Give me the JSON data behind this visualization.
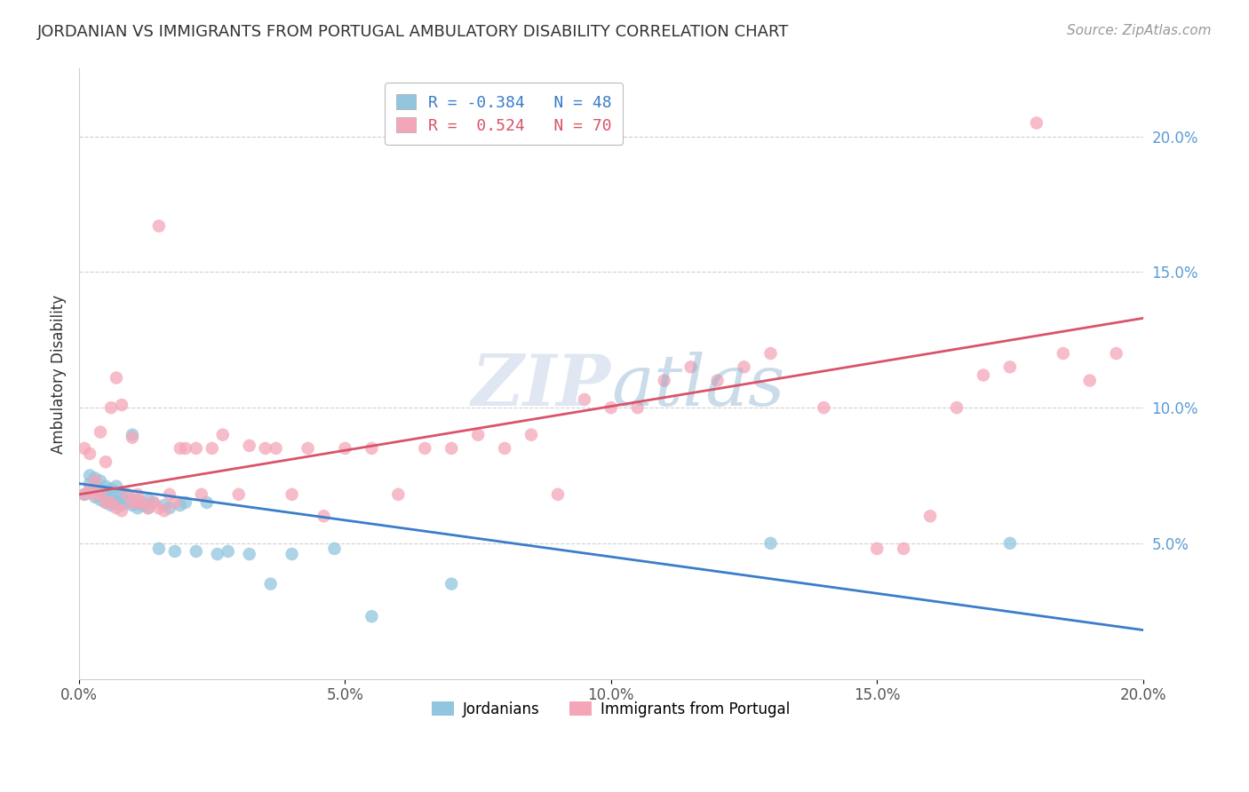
{
  "title": "JORDANIAN VS IMMIGRANTS FROM PORTUGAL AMBULATORY DISABILITY CORRELATION CHART",
  "source": "Source: ZipAtlas.com",
  "ylabel": "Ambulatory Disability",
  "xmin": 0.0,
  "xmax": 0.2,
  "ymin": 0.0,
  "ymax": 0.225,
  "blue_R": -0.384,
  "blue_N": 48,
  "pink_R": 0.524,
  "pink_N": 70,
  "blue_color": "#92c5de",
  "pink_color": "#f4a6b8",
  "blue_line_color": "#3a7dc9",
  "pink_line_color": "#d9536a",
  "legend_label_blue": "Jordanians",
  "legend_label_pink": "Immigrants from Portugal",
  "blue_legend_text_color": "#3a7dc9",
  "pink_legend_text_color": "#d9536a",
  "watermark": "ZIPAtlas",
  "blue_x": [
    0.001,
    0.002,
    0.002,
    0.003,
    0.003,
    0.003,
    0.004,
    0.004,
    0.004,
    0.005,
    0.005,
    0.005,
    0.006,
    0.006,
    0.006,
    0.007,
    0.007,
    0.007,
    0.008,
    0.008,
    0.009,
    0.009,
    0.01,
    0.01,
    0.011,
    0.011,
    0.012,
    0.013,
    0.013,
    0.014,
    0.015,
    0.016,
    0.017,
    0.018,
    0.019,
    0.02,
    0.022,
    0.024,
    0.026,
    0.028,
    0.032,
    0.036,
    0.04,
    0.048,
    0.055,
    0.07,
    0.13,
    0.175
  ],
  "blue_y": [
    0.068,
    0.072,
    0.075,
    0.067,
    0.071,
    0.074,
    0.066,
    0.069,
    0.073,
    0.065,
    0.068,
    0.071,
    0.064,
    0.067,
    0.07,
    0.065,
    0.068,
    0.071,
    0.064,
    0.067,
    0.065,
    0.068,
    0.064,
    0.09,
    0.063,
    0.066,
    0.064,
    0.063,
    0.066,
    0.065,
    0.048,
    0.064,
    0.063,
    0.047,
    0.064,
    0.065,
    0.047,
    0.065,
    0.046,
    0.047,
    0.046,
    0.035,
    0.046,
    0.048,
    0.023,
    0.035,
    0.05,
    0.05
  ],
  "pink_x": [
    0.001,
    0.001,
    0.002,
    0.002,
    0.003,
    0.003,
    0.004,
    0.004,
    0.005,
    0.005,
    0.006,
    0.006,
    0.007,
    0.007,
    0.008,
    0.008,
    0.009,
    0.01,
    0.01,
    0.011,
    0.011,
    0.012,
    0.013,
    0.014,
    0.015,
    0.015,
    0.016,
    0.017,
    0.018,
    0.019,
    0.02,
    0.022,
    0.023,
    0.025,
    0.027,
    0.03,
    0.032,
    0.035,
    0.037,
    0.04,
    0.043,
    0.046,
    0.05,
    0.055,
    0.06,
    0.065,
    0.07,
    0.075,
    0.08,
    0.085,
    0.09,
    0.095,
    0.1,
    0.105,
    0.11,
    0.115,
    0.12,
    0.125,
    0.13,
    0.14,
    0.15,
    0.155,
    0.16,
    0.165,
    0.17,
    0.175,
    0.18,
    0.185,
    0.19,
    0.195
  ],
  "pink_y": [
    0.068,
    0.085,
    0.07,
    0.083,
    0.068,
    0.073,
    0.068,
    0.091,
    0.065,
    0.08,
    0.065,
    0.1,
    0.063,
    0.111,
    0.062,
    0.101,
    0.068,
    0.065,
    0.089,
    0.065,
    0.068,
    0.065,
    0.063,
    0.065,
    0.167,
    0.063,
    0.062,
    0.068,
    0.065,
    0.085,
    0.085,
    0.085,
    0.068,
    0.085,
    0.09,
    0.068,
    0.086,
    0.085,
    0.085,
    0.068,
    0.085,
    0.06,
    0.085,
    0.085,
    0.068,
    0.085,
    0.085,
    0.09,
    0.085,
    0.09,
    0.068,
    0.103,
    0.1,
    0.1,
    0.11,
    0.115,
    0.11,
    0.115,
    0.12,
    0.1,
    0.048,
    0.048,
    0.06,
    0.1,
    0.112,
    0.115,
    0.205,
    0.12,
    0.11,
    0.12
  ],
  "blue_line_x0": 0.0,
  "blue_line_x1": 0.2,
  "blue_line_y0": 0.072,
  "blue_line_y1": 0.018,
  "pink_line_x0": 0.0,
  "pink_line_x1": 0.2,
  "pink_line_y0": 0.068,
  "pink_line_y1": 0.133,
  "right_ytick_vals": [
    0.05,
    0.1,
    0.15,
    0.2
  ],
  "right_ytick_labels": [
    "5.0%",
    "10.0%",
    "15.0%",
    "20.0%"
  ],
  "right_ytick_color": "#5b9bd5",
  "xtick_vals": [
    0.0,
    0.05,
    0.1,
    0.15,
    0.2
  ],
  "xtick_labels": [
    "0.0%",
    "5.0%",
    "10.0%",
    "15.0%",
    "20.0%"
  ],
  "grid_color": "#d0d0d0",
  "grid_style": "--",
  "spine_color": "#cccccc"
}
